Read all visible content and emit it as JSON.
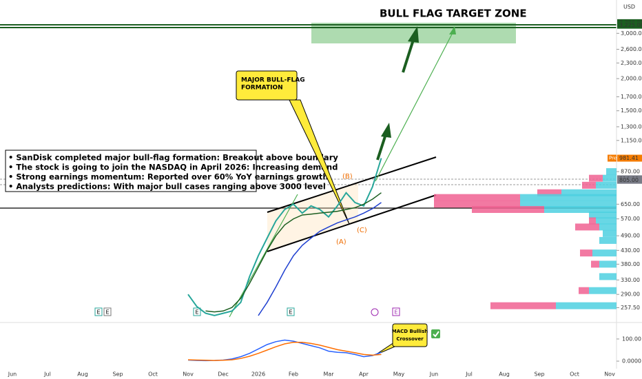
{
  "chart_data": [
    {
      "type": "line",
      "log_scale": true,
      "title": "BULL FLAG TARGET ZONE",
      "currency": "USD",
      "annotations": {
        "bullets": [
          "• SanDisk completed major bull-flag formation: Breakout above boundary",
          "• The stock is going to join the NASDAQ in April 2026: Increasing demand",
          "• Strong earnings momentum: Reported over 60% YoY earnings growth",
          "• Analysts predictions: With major bull cases ranging above 3000 level"
        ],
        "callout": [
          "MAJOR BULL-FLAG",
          "FORMATION"
        ],
        "waves": [
          "(A)",
          "(B)",
          "(C)"
        ],
        "events": [
          "E",
          "E",
          "E",
          "E",
          "E"
        ]
      },
      "categories": [
        "Jun",
        null,
        null,
        null,
        "Jul",
        null,
        null,
        null,
        "Aug",
        null,
        null,
        null,
        "Sep",
        null,
        null,
        null,
        "Oct",
        null,
        null,
        null,
        "Nov",
        null,
        null,
        null,
        "Dec",
        null,
        null,
        null,
        "2026",
        null,
        null,
        null,
        "Feb",
        null,
        null,
        null,
        "Mar",
        null,
        null,
        null,
        "Apr",
        null,
        null,
        null,
        "May",
        null,
        null,
        null,
        "Jun",
        null,
        null,
        null,
        "Jul",
        null,
        null,
        null,
        "Aug",
        null,
        null,
        null,
        "Sep",
        null,
        null,
        null,
        "Oct",
        null,
        null,
        null,
        "Nov",
        null,
        null,
        null
      ],
      "series": [
        {
          "color": "#26a69a",
          "values": [
            null,
            null,
            null,
            null,
            null,
            null,
            null,
            null,
            null,
            null,
            null,
            null,
            null,
            null,
            null,
            null,
            null,
            null,
            null,
            null,
            290,
            260,
            245,
            240,
            245,
            250,
            270,
            340,
            410,
            480,
            560,
            620,
            650,
            600,
            640,
            620,
            580,
            640,
            720,
            660,
            640,
            760,
            981.41,
            null,
            null,
            null,
            null,
            null,
            null,
            null,
            null,
            null,
            null,
            null,
            null,
            null,
            null,
            null,
            null,
            null,
            null,
            null,
            null,
            null,
            null,
            null,
            null,
            null,
            null,
            null,
            null,
            null
          ]
        },
        {
          "color": "#1b5e20",
          "values": [
            null,
            null,
            null,
            null,
            null,
            null,
            null,
            null,
            null,
            null,
            null,
            null,
            null,
            null,
            null,
            null,
            null,
            null,
            null,
            null,
            null,
            null,
            250,
            248,
            250,
            258,
            280,
            320,
            370,
            430,
            490,
            540,
            570,
            590,
            595,
            600,
            605,
            610,
            620,
            630,
            650,
            680,
            720,
            null,
            null,
            null,
            null,
            null,
            null,
            null,
            null,
            null,
            null,
            null,
            null,
            null,
            null,
            null,
            null,
            null,
            null,
            null,
            null,
            null,
            null,
            null,
            null,
            null,
            null,
            null,
            null,
            null
          ]
        },
        {
          "color": "#1e3fd0",
          "values": [
            null,
            null,
            null,
            null,
            null,
            null,
            null,
            null,
            null,
            null,
            null,
            null,
            null,
            null,
            null,
            null,
            null,
            null,
            null,
            null,
            null,
            null,
            null,
            null,
            null,
            null,
            null,
            null,
            240,
            270,
            310,
            360,
            410,
            450,
            480,
            510,
            530,
            550,
            565,
            580,
            600,
            625,
            660,
            null,
            null,
            null,
            null,
            null,
            null,
            null,
            null,
            null,
            null,
            null,
            null,
            null,
            null,
            null,
            null,
            null,
            null,
            null,
            null,
            null,
            null,
            null,
            null,
            null,
            null,
            null,
            null,
            null
          ]
        }
      ],
      "ylim": [
        234,
        3800
      ],
      "yticks": [
        {
          "value": 3000,
          "label": "3,000.00"
        },
        {
          "value": 2600,
          "label": "2,600.00"
        },
        {
          "value": 2300,
          "label": "2,300.00"
        },
        {
          "value": 2000,
          "label": "2,000.00"
        },
        {
          "value": 1700,
          "label": "1,700.00"
        },
        {
          "value": 1500,
          "label": "1,500.00"
        },
        {
          "value": 1300,
          "label": "1,300.00"
        },
        {
          "value": 1150,
          "label": "1,150.00"
        },
        {
          "value": 870,
          "label": "870.00"
        },
        {
          "value": 650,
          "label": "650.00"
        },
        {
          "value": 570,
          "label": "570.00"
        },
        {
          "value": 490,
          "label": "490.00"
        },
        {
          "value": 430,
          "label": "430.00"
        },
        {
          "value": 380,
          "label": "380.00"
        },
        {
          "value": 330,
          "label": "330.00"
        },
        {
          "value": 290,
          "label": "290.00"
        },
        {
          "value": 257.5,
          "label": "257.50"
        }
      ],
      "price_labels": [
        {
          "value": 3300,
          "label": "3,300.00",
          "color": "#1b5e20"
        },
        {
          "value": 3225,
          "label": "3,225.00",
          "color": "#1b5e20"
        },
        {
          "value": 981.41,
          "label": "981.41",
          "color": "#f57c00"
        },
        {
          "value": 816,
          "label": "816.00",
          "color": "#787b86"
        },
        {
          "value": 805,
          "label": "805.00",
          "color": "#787b86"
        }
      ],
      "pre_label": "Pre",
      "volume_profile": {
        "buy_color": "#4dd0e1",
        "sell_color": "#f06292",
        "prices": [
          870,
          820,
          770,
          720,
          690,
          650,
          620,
          590,
          560,
          530,
          500,
          470,
          420,
          380,
          340,
          300,
          262
        ],
        "buy": [
          15,
          20,
          30,
          80,
          140,
          140,
          105,
          40,
          30,
          25,
          20,
          25,
          35,
          25,
          25,
          40,
          88
        ],
        "sell": [
          0,
          20,
          20,
          35,
          125,
          125,
          105,
          0,
          10,
          35,
          0,
          0,
          18,
          12,
          0,
          15,
          95
        ]
      }
    },
    {
      "type": "line",
      "callout": [
        "MACD Bullish",
        "Crossover"
      ],
      "series": [
        {
          "color": "#2962ff",
          "values": [
            null,
            null,
            null,
            null,
            null,
            null,
            null,
            null,
            null,
            null,
            null,
            null,
            null,
            null,
            null,
            null,
            null,
            null,
            null,
            null,
            5,
            3,
            2,
            3,
            5,
            10,
            20,
            35,
            55,
            75,
            88,
            95,
            90,
            80,
            70,
            60,
            45,
            40,
            38,
            30,
            20,
            25,
            40,
            null,
            null,
            null,
            null,
            null,
            null,
            null,
            null,
            null,
            null,
            null,
            null,
            null,
            null,
            null,
            null,
            null,
            null,
            null,
            null,
            null,
            null,
            null,
            null,
            null,
            null,
            null,
            null,
            null
          ]
        },
        {
          "color": "#ff6d00",
          "values": [
            null,
            null,
            null,
            null,
            null,
            null,
            null,
            null,
            null,
            null,
            null,
            null,
            null,
            null,
            null,
            null,
            null,
            null,
            null,
            null,
            6,
            5,
            4,
            3,
            4,
            6,
            12,
            22,
            35,
            50,
            65,
            78,
            85,
            85,
            80,
            72,
            62,
            52,
            45,
            38,
            30,
            27,
            30,
            null,
            null,
            null,
            null,
            null,
            null,
            null,
            null,
            null,
            null,
            null,
            null,
            null,
            null,
            null,
            null,
            null,
            null,
            null,
            null,
            null,
            null,
            null,
            null,
            null,
            null,
            null,
            null,
            null
          ]
        }
      ],
      "ylim": [
        -34,
        162
      ],
      "yticks": [
        {
          "value": 100,
          "label": "100.00"
        },
        {
          "value": 0,
          "label": "0.0000"
        }
      ]
    }
  ]
}
